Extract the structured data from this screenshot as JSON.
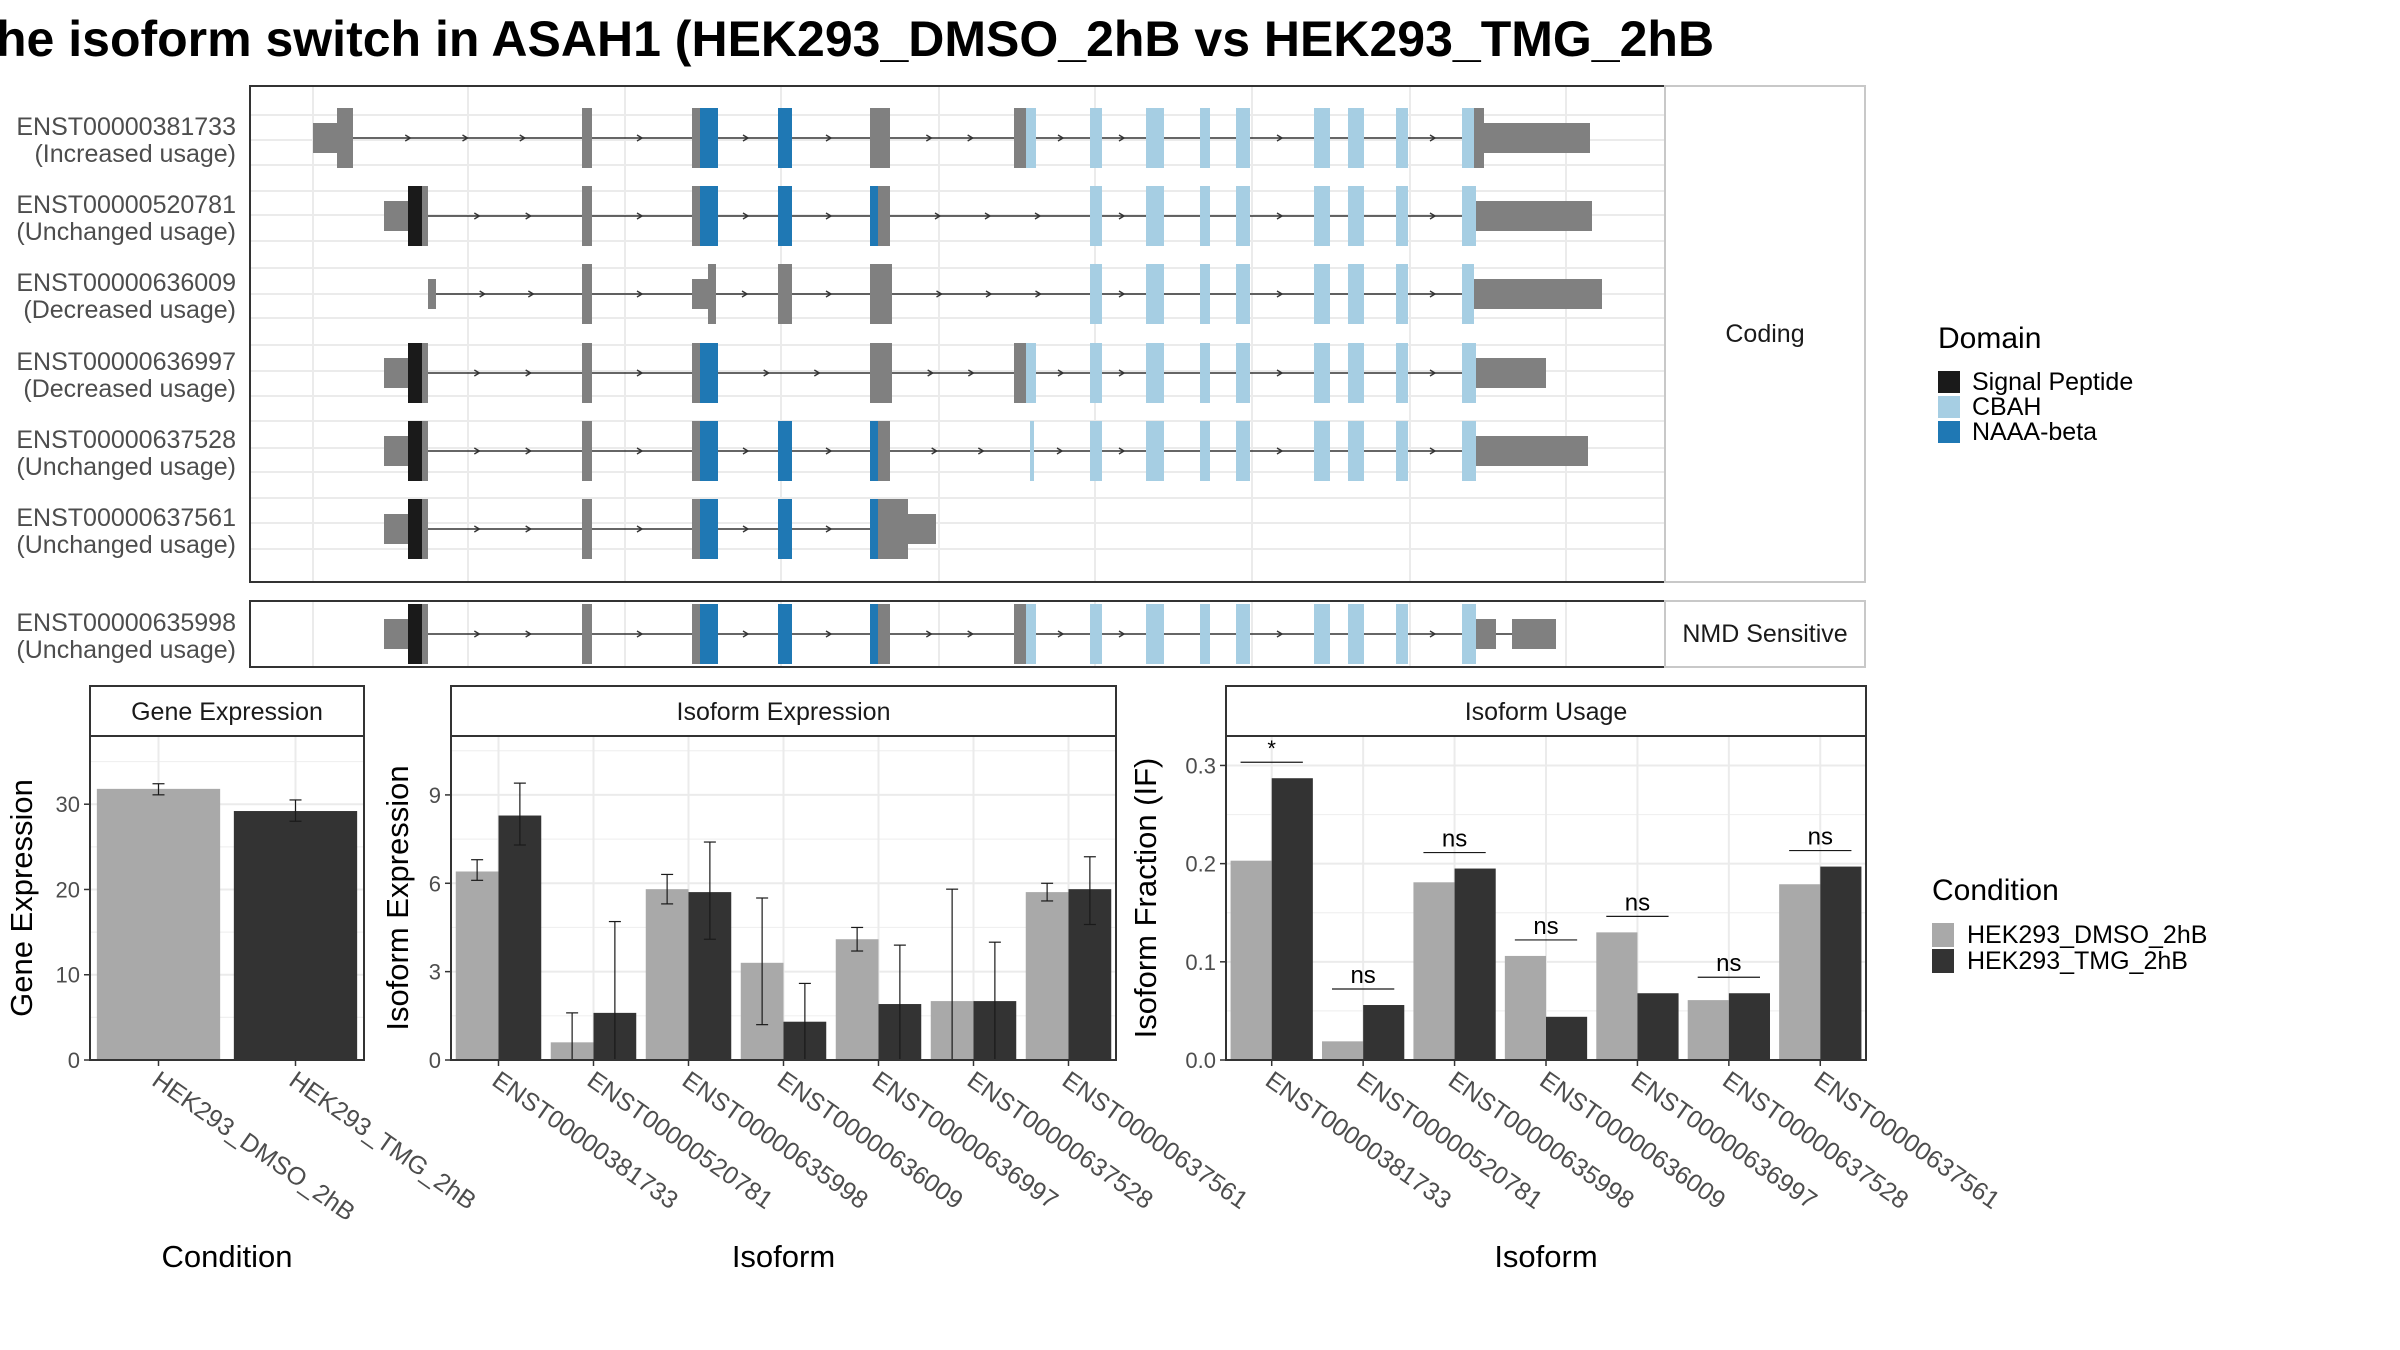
{
  "title": "he isoform switch in ASAH1 (HEK293_DMSO_2hB vs HEK293_TMG_2hB",
  "colors": {
    "utr": "#808080",
    "signal_peptide": "#1a1a1a",
    "cbah": "#a6cee3",
    "naaa_beta": "#1f78b4",
    "dmso": "#a9a9a9",
    "tmg": "#333333"
  },
  "structure": {
    "coding_label": "Coding",
    "nmd_label": "NMD Sensitive",
    "transcripts": [
      {
        "id": "ENST00000381733",
        "usage": "(Increased usage)",
        "group": "coding"
      },
      {
        "id": "ENST00000520781",
        "usage": "(Unchanged usage)",
        "group": "coding"
      },
      {
        "id": "ENST00000636009",
        "usage": "(Decreased usage)",
        "group": "coding"
      },
      {
        "id": "ENST00000636997",
        "usage": "(Decreased usage)",
        "group": "coding"
      },
      {
        "id": "ENST00000637528",
        "usage": "(Unchanged usage)",
        "group": "coding"
      },
      {
        "id": "ENST00000637561",
        "usage": "(Unchanged usage)",
        "group": "coding"
      },
      {
        "id": "ENST00000635998",
        "usage": "(Unchanged usage)",
        "group": "nmd"
      }
    ]
  },
  "legend_domain": {
    "title": "Domain",
    "items": [
      {
        "label": "Signal Peptide",
        "color": "#1a1a1a"
      },
      {
        "label": "CBAH",
        "color": "#a6cee3"
      },
      {
        "label": "NAAA-beta",
        "color": "#1f78b4"
      }
    ]
  },
  "legend_condition": {
    "title": "Condition",
    "items": [
      {
        "label": "HEK293_DMSO_2hB",
        "color": "#a9a9a9"
      },
      {
        "label": "HEK293_TMG_2hB",
        "color": "#333333"
      }
    ]
  },
  "chart_data": [
    {
      "type": "bar",
      "title": "Gene Expression",
      "xlabel": "Condition",
      "ylabel": "Gene Expression",
      "categories": [
        "HEK293_DMSO_2hB",
        "HEK293_TMG_2hB"
      ],
      "values": [
        31.8,
        29.2
      ],
      "error_low": [
        31.1,
        28.0
      ],
      "error_high": [
        32.4,
        30.5
      ],
      "ylim": [
        0,
        38
      ],
      "yticks": [
        0,
        10,
        20,
        30
      ]
    },
    {
      "type": "bar",
      "title": "Isoform Expression",
      "xlabel": "Isoform",
      "ylabel": "Isoform Expression",
      "categories": [
        "ENST00000381733",
        "ENST00000520781",
        "ENST00000635998",
        "ENST00000636009",
        "ENST00000636997",
        "ENST00000637528",
        "ENST00000637561"
      ],
      "series": [
        {
          "name": "HEK293_DMSO_2hB",
          "values": [
            6.4,
            0.6,
            5.8,
            3.3,
            4.1,
            2.0,
            5.7
          ],
          "error_low": [
            6.1,
            0.0,
            5.3,
            1.2,
            3.7,
            0.0,
            5.4
          ],
          "error_high": [
            6.8,
            1.6,
            6.3,
            5.5,
            4.5,
            5.8,
            6.0
          ]
        },
        {
          "name": "HEK293_TMG_2hB",
          "values": [
            8.3,
            1.6,
            5.7,
            1.3,
            1.9,
            2.0,
            5.8
          ],
          "error_low": [
            7.3,
            0.0,
            4.1,
            0.0,
            0.0,
            0.0,
            4.6
          ],
          "error_high": [
            9.4,
            4.7,
            7.4,
            2.6,
            3.9,
            4.0,
            6.9
          ]
        }
      ],
      "ylim": [
        0,
        11
      ],
      "yticks": [
        0,
        3,
        6,
        9
      ]
    },
    {
      "type": "bar",
      "title": "Isoform Usage",
      "xlabel": "Isoform",
      "ylabel": "Isoform Fraction (IF)",
      "categories": [
        "ENST00000381733",
        "ENST00000520781",
        "ENST00000635998",
        "ENST00000636009",
        "ENST00000636997",
        "ENST00000637528",
        "ENST00000637561"
      ],
      "series": [
        {
          "name": "HEK293_DMSO_2hB",
          "values": [
            0.203,
            0.019,
            0.181,
            0.106,
            0.13,
            0.061,
            0.179
          ]
        },
        {
          "name": "HEK293_TMG_2hB",
          "values": [
            0.287,
            0.056,
            0.195,
            0.044,
            0.068,
            0.068,
            0.197
          ]
        }
      ],
      "significance": [
        "*",
        "ns",
        "ns",
        "ns",
        "ns",
        "ns",
        "ns"
      ],
      "ylim": [
        0,
        0.33
      ],
      "yticks": [
        0.0,
        0.1,
        0.2,
        0.3
      ],
      "ytick_labels": [
        "0.0",
        "0.1",
        "0.2",
        "0.3"
      ]
    }
  ]
}
